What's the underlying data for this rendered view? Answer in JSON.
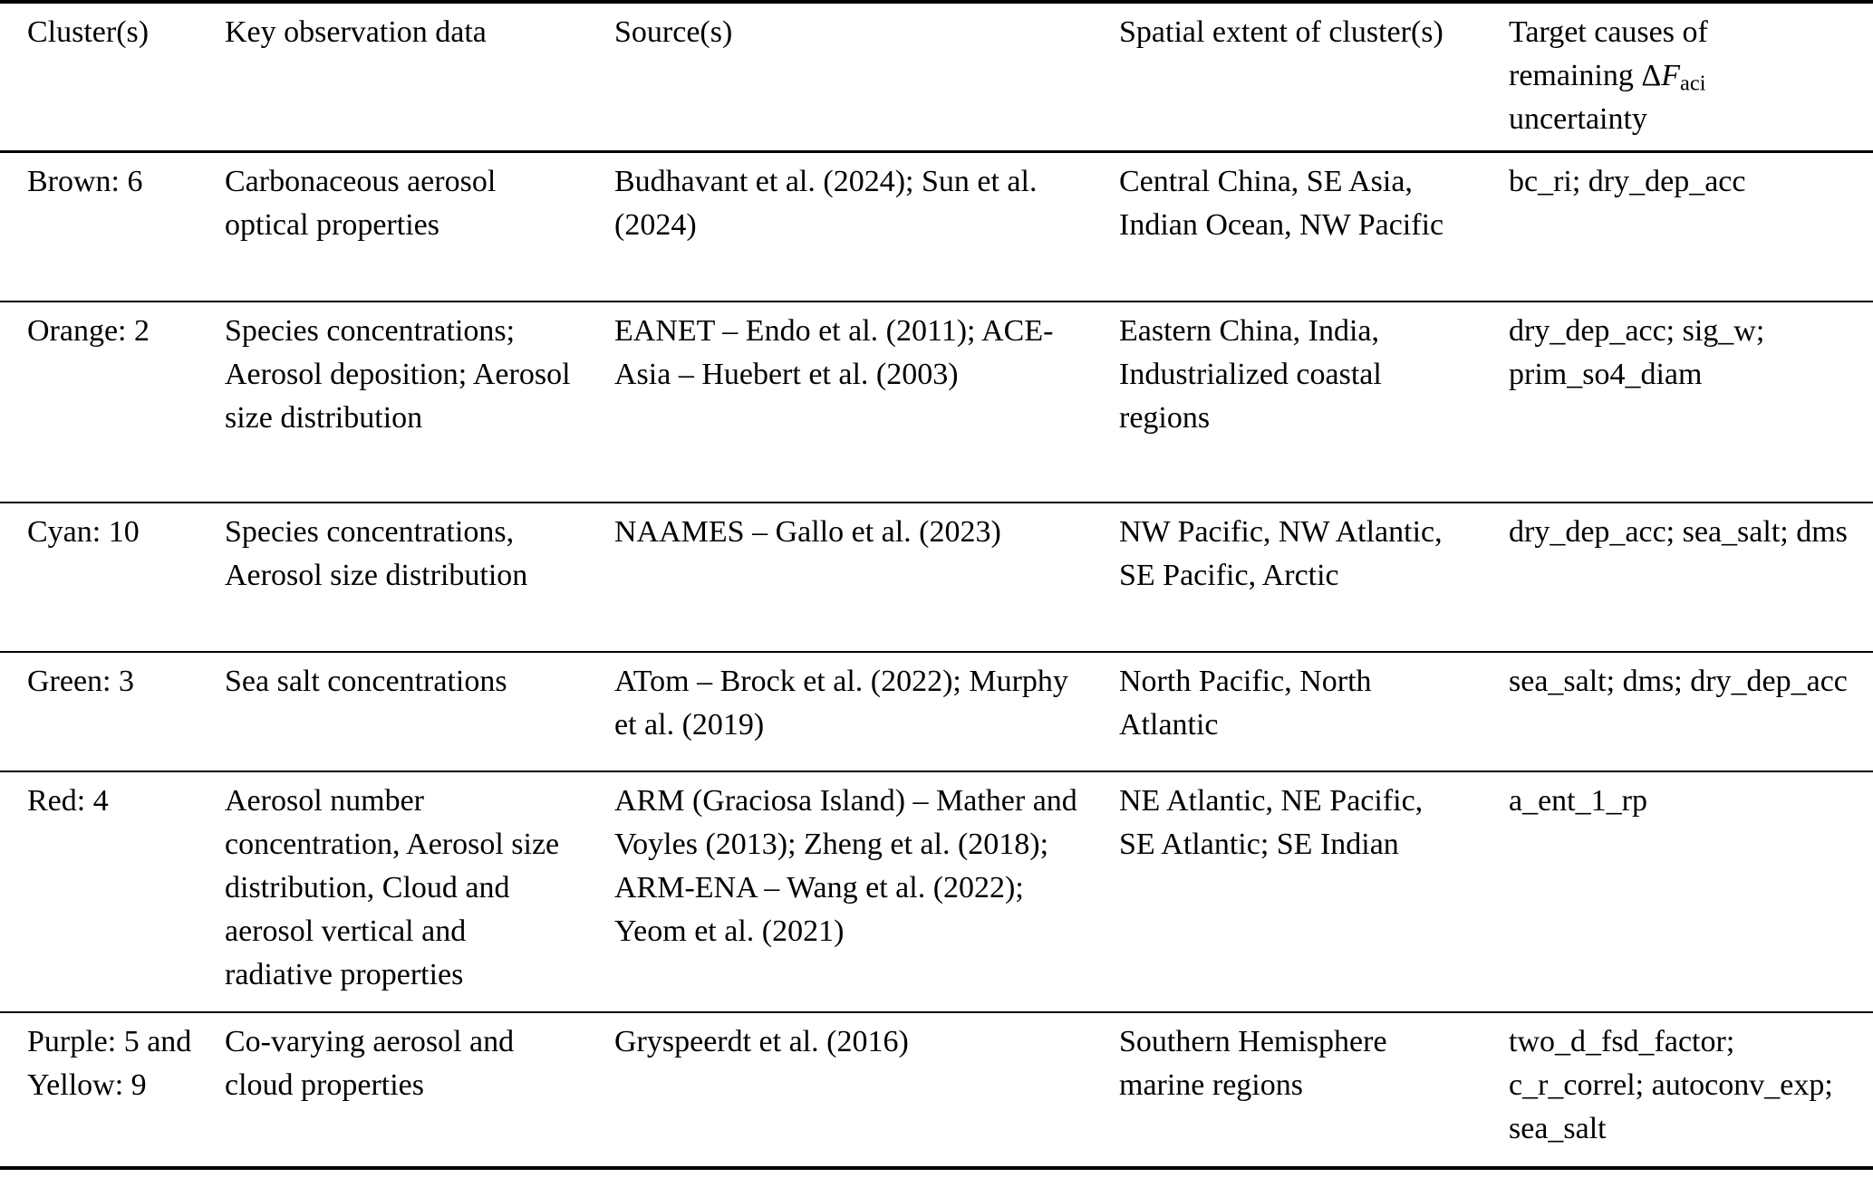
{
  "page": {
    "background_color": "#ffffff",
    "text_color": "#000000",
    "rule_color": "#000000"
  },
  "table": {
    "header": {
      "cluster": "Cluster(s)",
      "observation": "Key observation data",
      "sources": "Source(s)",
      "spatial_extent": "Spatial extent of cluster(s)",
      "target_causes": {
        "line1": "Target causes of",
        "line2": "remaining",
        "formula": {
          "delta": "Δ",
          "variable": "F",
          "subscript": "aci"
        },
        "line3": "uncertainty"
      }
    },
    "rows": [
      {
        "cluster": "Brown: 6",
        "observation": "Carbonaceous aerosol optical properties",
        "sources": "Budhavant et al. (2024); Sun et al. (2024)",
        "spatial_extent": "Central China, SE Asia, Indian Ocean, NW Pacific",
        "target_causes": "bc_ri; dry_dep_acc"
      },
      {
        "cluster": "Orange: 2",
        "observation": "Species concentrations; Aerosol deposition; Aerosol size distribution",
        "sources": "EANET – Endo et al. (2011); ACE-Asia – Huebert et al. (2003)",
        "spatial_extent": "Eastern China, India, Industrialized coastal regions",
        "target_causes": "dry_dep_acc; sig_w; prim_so4_diam"
      },
      {
        "cluster": "Cyan: 10",
        "observation": "Species concentrations, Aerosol size distribution",
        "sources": "NAAMES – Gallo et al. (2023)",
        "spatial_extent": "NW Pacific, NW Atlantic, SE Pacific, Arctic",
        "target_causes": "dry_dep_acc; sea_salt; dms"
      },
      {
        "cluster": "Green: 3",
        "observation": "Sea salt concentrations",
        "sources": "ATom – Brock et al. (2022); Murphy et al. (2019)",
        "spatial_extent": "North Pacific, North Atlantic",
        "target_causes": "sea_salt; dms; dry_dep_acc"
      },
      {
        "cluster": "Red: 4",
        "observation": "Aerosol number concentration, Aerosol size distribution, Cloud and aerosol vertical and radiative properties",
        "sources": "ARM (Graciosa Island) – Mather and Voyles (2013); Zheng et al. (2018); ARM-ENA – Wang et al. (2022); Yeom et al. (2021)",
        "spatial_extent": "NE Atlantic, NE Pacific, SE Atlantic; SE Indian",
        "target_causes": "a_ent_1_rp"
      },
      {
        "cluster": "Purple: 5 and Yellow: 9",
        "observation": "Co-varying aerosol and cloud properties",
        "sources": "Gryspeerdt et al. (2016)",
        "spatial_extent": "Southern Hemisphere marine regions",
        "target_causes": "two_d_fsd_factor; c_r_correl; autoconv_exp; sea_salt"
      }
    ]
  }
}
